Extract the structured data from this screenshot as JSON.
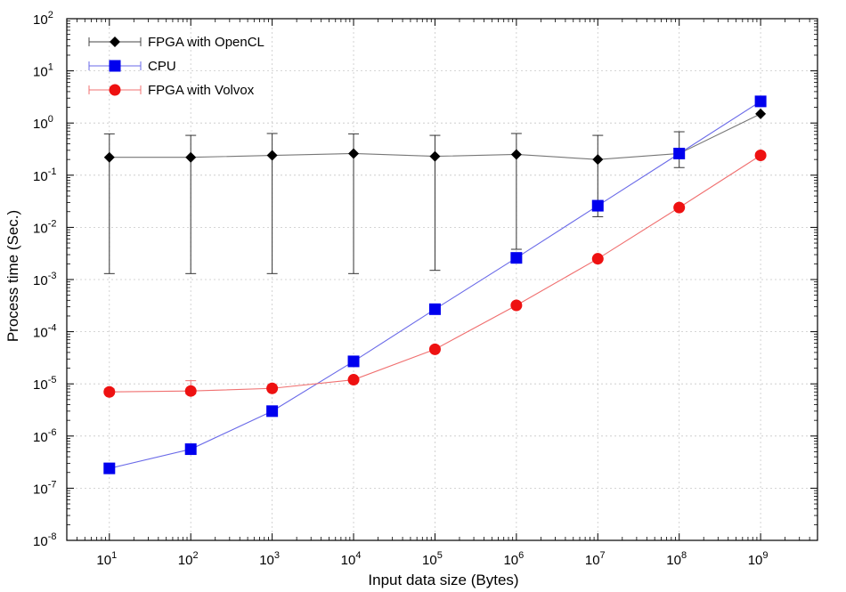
{
  "chart_data": {
    "type": "line",
    "xlabel": "Input data size (Bytes)",
    "ylabel": "Process time (Sec.)",
    "x_scale": "log",
    "y_scale": "log",
    "xlim": [
      3,
      5000000000.0
    ],
    "ylim": [
      1e-08,
      100
    ],
    "x_ticks": [
      {
        "value": 10,
        "base": "10",
        "exp": "1"
      },
      {
        "value": 100,
        "base": "10",
        "exp": "2"
      },
      {
        "value": 1000,
        "base": "10",
        "exp": "3"
      },
      {
        "value": 10000,
        "base": "10",
        "exp": "4"
      },
      {
        "value": 100000,
        "base": "10",
        "exp": "5"
      },
      {
        "value": 1000000,
        "base": "10",
        "exp": "6"
      },
      {
        "value": 10000000,
        "base": "10",
        "exp": "7"
      },
      {
        "value": 100000000,
        "base": "10",
        "exp": "8"
      },
      {
        "value": 1000000000,
        "base": "10",
        "exp": "9"
      }
    ],
    "y_ticks": [
      {
        "value": 100,
        "base": "10",
        "exp": "2"
      },
      {
        "value": 10,
        "base": "10",
        "exp": "1"
      },
      {
        "value": 1,
        "base": "10",
        "exp": "0"
      },
      {
        "value": 0.1,
        "base": "10",
        "exp": "-1"
      },
      {
        "value": 0.01,
        "base": "10",
        "exp": "-2"
      },
      {
        "value": 0.001,
        "base": "10",
        "exp": "-3"
      },
      {
        "value": 0.0001,
        "base": "10",
        "exp": "-4"
      },
      {
        "value": 1e-05,
        "base": "10",
        "exp": "-5"
      },
      {
        "value": 1e-06,
        "base": "10",
        "exp": "-6"
      },
      {
        "value": 1e-07,
        "base": "10",
        "exp": "-7"
      },
      {
        "value": 1e-08,
        "base": "10",
        "exp": "-8"
      }
    ],
    "grid": true,
    "legend_position": "top-left",
    "x": [
      10,
      100,
      1000,
      10000,
      100000,
      1000000,
      10000000,
      100000000,
      1000000000
    ],
    "series": [
      {
        "name": "FPGA with OpenCL",
        "color": "#000000",
        "line_color": "#777777",
        "marker": "diamond",
        "values": [
          0.22,
          0.22,
          0.24,
          0.26,
          0.23,
          0.25,
          0.2,
          0.26,
          1.5
        ],
        "error_low": [
          0.0013,
          0.0013,
          0.0013,
          0.0013,
          0.0015,
          0.0038,
          0.016,
          0.14,
          null
        ],
        "error_high": [
          0.62,
          0.58,
          0.63,
          0.62,
          0.58,
          0.63,
          0.58,
          0.68,
          null
        ]
      },
      {
        "name": "CPU",
        "color": "#0000ee",
        "line_color": "#6a6ae8",
        "marker": "square",
        "values": [
          2.4e-07,
          5.6e-07,
          3e-06,
          2.7e-05,
          0.00027,
          0.0026,
          0.026,
          0.26,
          2.6
        ],
        "error_low": [
          null,
          null,
          null,
          null,
          null,
          null,
          null,
          null,
          null
        ],
        "error_high": [
          null,
          null,
          null,
          null,
          null,
          null,
          null,
          null,
          null
        ]
      },
      {
        "name": "FPGA with Volvox",
        "color": "#ee1111",
        "line_color": "#f07070",
        "marker": "circle",
        "values": [
          7e-06,
          7.3e-06,
          8.2e-06,
          1.2e-05,
          4.6e-05,
          0.00032,
          0.0025,
          0.024,
          0.24
        ],
        "error_low": [
          6.4e-06,
          6.4e-06,
          null,
          null,
          null,
          null,
          null,
          null,
          null
        ],
        "error_high": [
          8e-06,
          1.15e-05,
          null,
          null,
          null,
          null,
          null,
          null,
          null
        ]
      }
    ]
  }
}
